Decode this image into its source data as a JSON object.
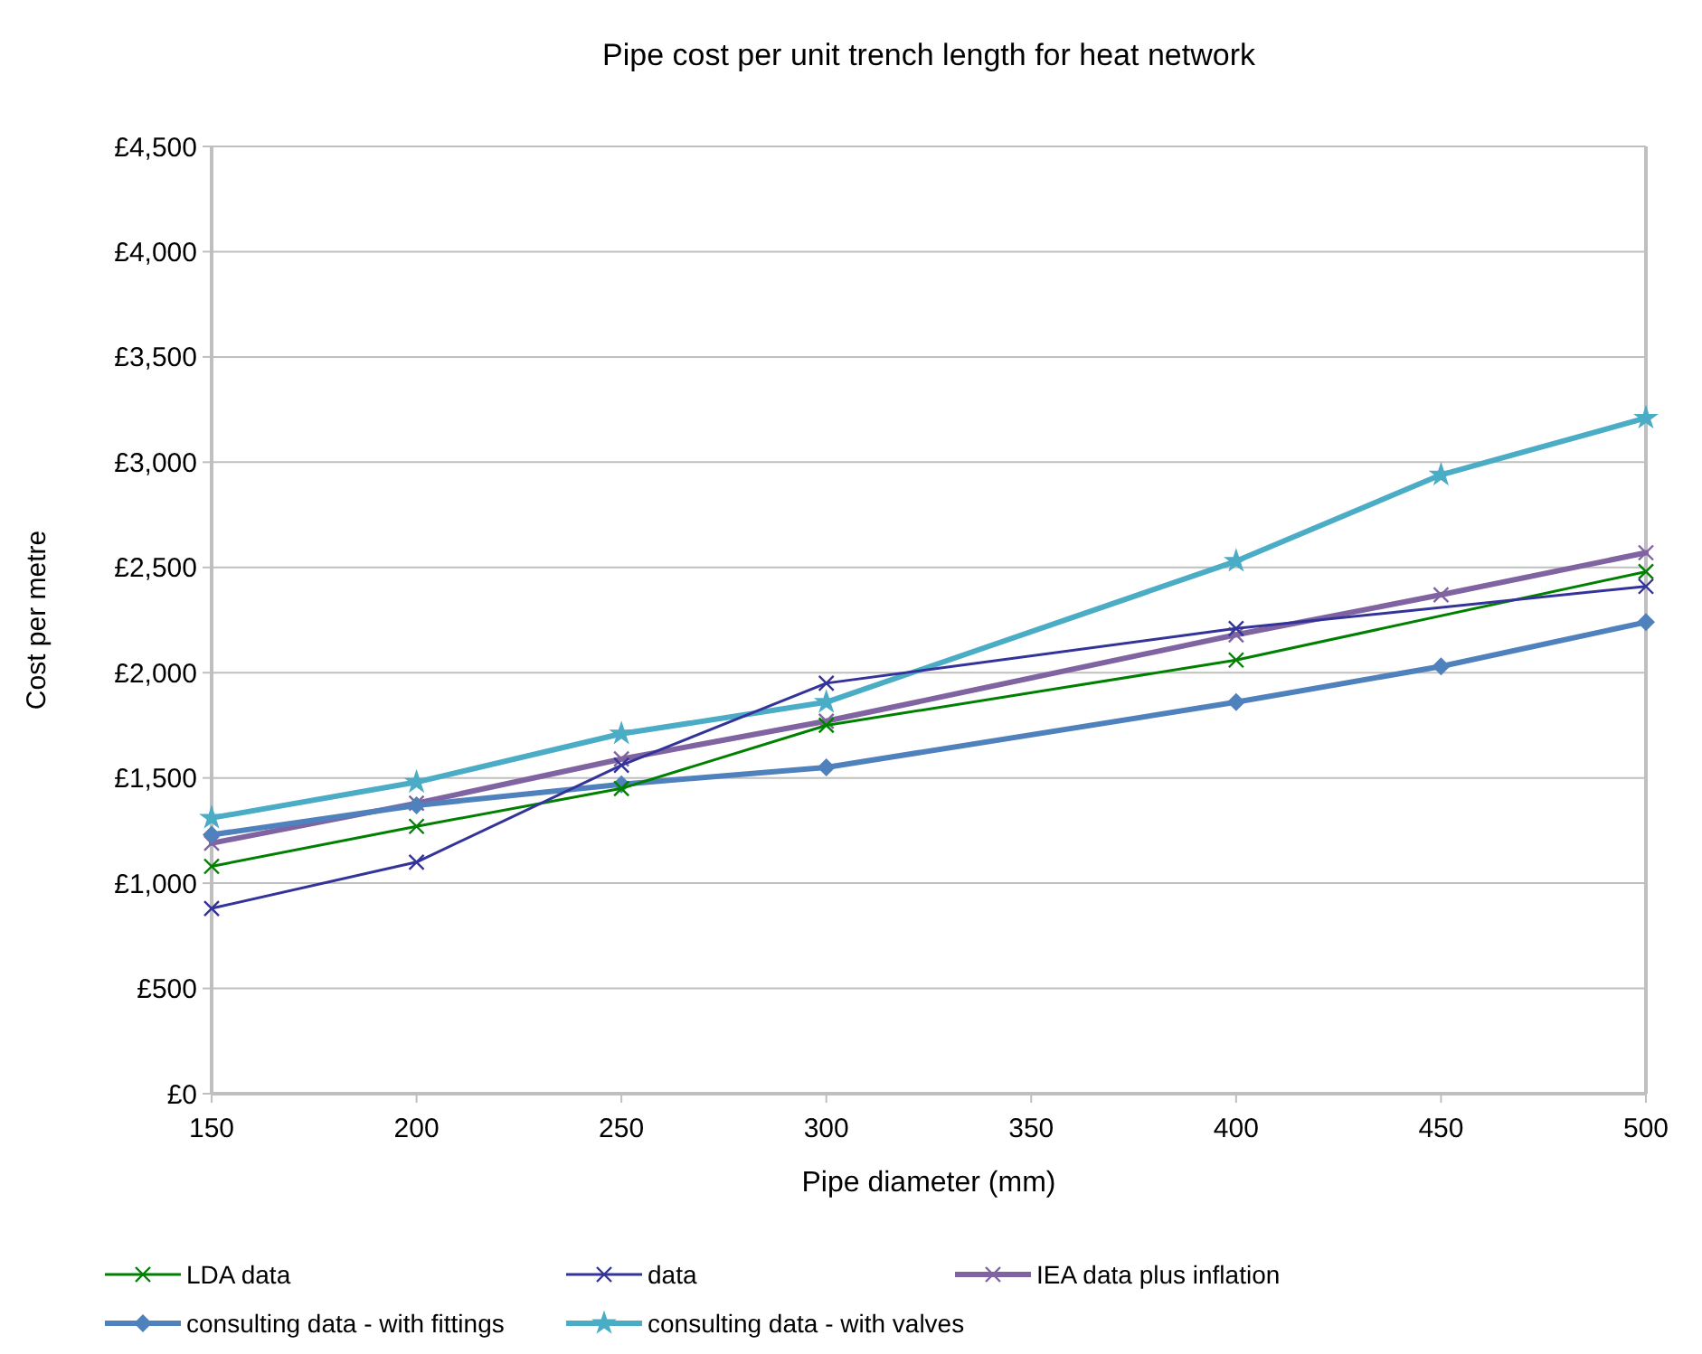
{
  "chart_data": {
    "type": "line",
    "title": "Pipe cost per unit trench length for  heat network",
    "xlabel": "Pipe diameter (mm)",
    "ylabel": "Cost per metre",
    "xlim": [
      150,
      500
    ],
    "xticks": [
      150,
      200,
      250,
      300,
      350,
      400,
      450,
      500
    ],
    "ylim": [
      0,
      4500
    ],
    "yticks": [
      {
        "value": 0,
        "label": "£0"
      },
      {
        "value": 500,
        "label": "£500"
      },
      {
        "value": 1000,
        "label": "£1,000"
      },
      {
        "value": 1500,
        "label": "£1,500"
      },
      {
        "value": 2000,
        "label": "£2,000"
      },
      {
        "value": 2500,
        "label": "£2,500"
      },
      {
        "value": 3000,
        "label": "£3,000"
      },
      {
        "value": 3500,
        "label": "£3,500"
      },
      {
        "value": 4000,
        "label": "£4,000"
      },
      {
        "value": 4500,
        "label": "£4,500"
      }
    ],
    "grid": "y",
    "legend": "bottom",
    "series": [
      {
        "name": "LDA data",
        "color": "#008000",
        "marker": "cross",
        "x": [
          150,
          200,
          250,
          300,
          400,
          500
        ],
        "values": [
          1080,
          1270,
          1450,
          1750,
          2060,
          2480
        ]
      },
      {
        "name": "data",
        "color": "#333399",
        "marker": "cross",
        "x": [
          150,
          200,
          250,
          300,
          400,
          500
        ],
        "values": [
          880,
          1100,
          1560,
          1950,
          2210,
          2410
        ]
      },
      {
        "name": "IEA data plus inflation",
        "color": "#8064a2",
        "marker": "cross",
        "x": [
          150,
          200,
          250,
          300,
          400,
          450,
          500
        ],
        "values": [
          1190,
          1380,
          1590,
          1770,
          2180,
          2370,
          2570
        ]
      },
      {
        "name": "consulting data - with fittings",
        "color": "#4f81bd",
        "marker": "diamond",
        "x": [
          150,
          200,
          250,
          300,
          400,
          450,
          500
        ],
        "values": [
          1230,
          1370,
          1470,
          1550,
          1860,
          2030,
          2240
        ]
      },
      {
        "name": "consulting data - with valves",
        "color": "#4bacc6",
        "marker": "star",
        "x": [
          150,
          200,
          250,
          300,
          400,
          450,
          500
        ],
        "values": [
          1310,
          1480,
          1710,
          1860,
          2530,
          2940,
          3210
        ]
      }
    ]
  }
}
